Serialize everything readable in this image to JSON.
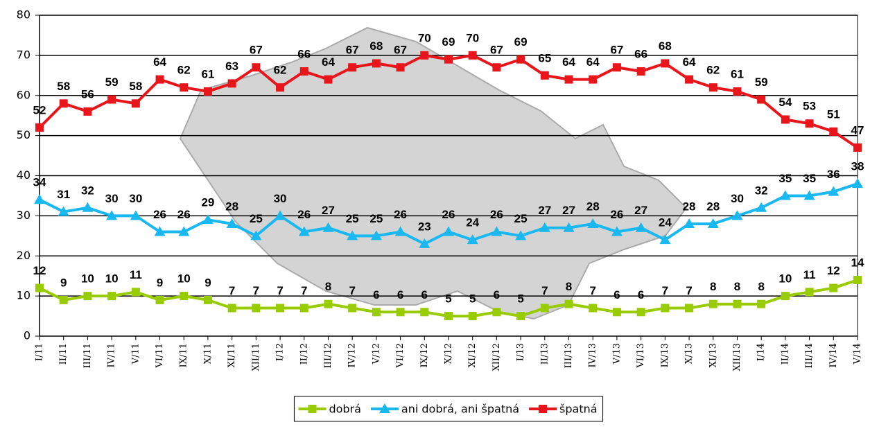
{
  "chart_data": {
    "type": "line",
    "categories": [
      "I/11",
      "II/11",
      "III/11",
      "IV/11",
      "V/11",
      "VI/11",
      "IX/11",
      "X/11",
      "XI/11",
      "XII/11",
      "I/12",
      "II/12",
      "III/12",
      "IV/12",
      "V/12",
      "VI/12",
      "IX/12",
      "X/12",
      "XI/12",
      "XII/12",
      "I/13",
      "II/13",
      "III/13",
      "IV/13",
      "V/13",
      "VI/13",
      "IX/13",
      "X/13",
      "XI/13",
      "XII/13",
      "I/14",
      "II/14",
      "III/14",
      "IV/14",
      "V/14"
    ],
    "series": [
      {
        "name": "dobrá",
        "color": "#99cc00",
        "marker": "square",
        "values": [
          12,
          9,
          10,
          10,
          11,
          9,
          10,
          9,
          7,
          7,
          7,
          7,
          8,
          7,
          6,
          6,
          6,
          5,
          5,
          6,
          5,
          7,
          8,
          7,
          6,
          6,
          7,
          7,
          8,
          8,
          8,
          10,
          11,
          12,
          14
        ]
      },
      {
        "name": "ani dobrá, ani špatná",
        "color": "#1ab8f0",
        "marker": "triangle",
        "values": [
          34,
          31,
          32,
          30,
          30,
          26,
          26,
          29,
          28,
          25,
          30,
          26,
          27,
          25,
          25,
          26,
          23,
          26,
          24,
          26,
          25,
          27,
          27,
          28,
          26,
          27,
          24,
          28,
          28,
          30,
          32,
          35,
          35,
          36,
          38
        ]
      },
      {
        "name": "špatná",
        "color": "#e8161b",
        "marker": "square",
        "values": [
          52,
          58,
          56,
          59,
          58,
          64,
          62,
          61,
          63,
          67,
          62,
          66,
          64,
          67,
          68,
          67,
          70,
          69,
          70,
          67,
          69,
          65,
          64,
          64,
          67,
          66,
          68,
          64,
          62,
          61,
          59,
          54,
          53,
          51,
          47
        ]
      }
    ],
    "ylim": [
      0,
      80
    ],
    "yticks": [
      0,
      10,
      20,
      30,
      40,
      50,
      60,
      70,
      80
    ],
    "grid": true,
    "legend": "bottom"
  }
}
